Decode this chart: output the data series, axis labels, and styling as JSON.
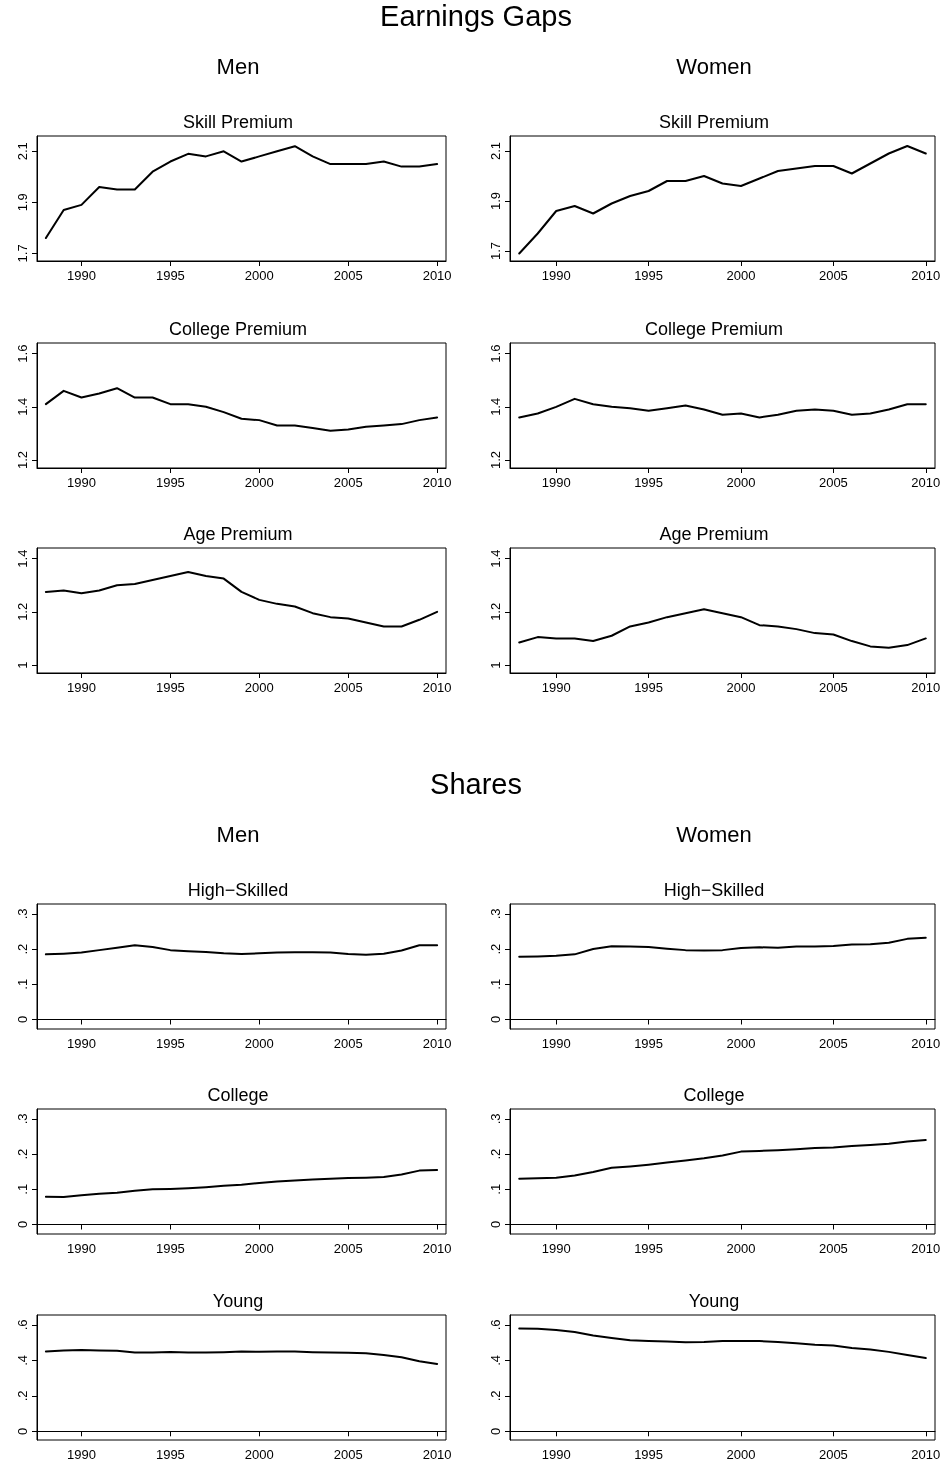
{
  "chart_data": [
    {
      "type": "line",
      "title": "Skill Premium",
      "annotations": [
        "Earnings Gaps",
        "Men"
      ],
      "x": [
        1988,
        1989,
        1990,
        1991,
        1992,
        1993,
        1994,
        1995,
        1996,
        1997,
        1998,
        1999,
        2000,
        2001,
        2002,
        2003,
        2004,
        2005,
        2006,
        2007,
        2008,
        2009,
        2010
      ],
      "values": [
        1.76,
        1.87,
        1.89,
        1.96,
        1.95,
        1.95,
        2.02,
        2.06,
        2.09,
        2.08,
        2.1,
        2.06,
        2.08,
        2.1,
        2.12,
        2.08,
        2.05,
        2.05,
        2.05,
        2.06,
        2.04,
        2.04,
        2.05
      ],
      "color": "#000000",
      "xlim": [
        1987.5,
        2010.5
      ],
      "xticks": [
        1990,
        1995,
        2000,
        2005,
        2010
      ],
      "ylim": [
        1.67,
        2.16
      ],
      "yticks": [
        1.7,
        1.9,
        2.1
      ]
    },
    {
      "type": "line",
      "title": "Skill Premium",
      "annotations": [
        "Women"
      ],
      "x": [
        1988,
        1989,
        1990,
        1991,
        1992,
        1993,
        1994,
        1995,
        1996,
        1997,
        1998,
        1999,
        2000,
        2001,
        2002,
        2003,
        2004,
        2005,
        2006,
        2007,
        2008,
        2009,
        2010
      ],
      "values": [
        1.69,
        1.77,
        1.86,
        1.88,
        1.85,
        1.89,
        1.92,
        1.94,
        1.98,
        1.98,
        2.0,
        1.97,
        1.96,
        1.99,
        2.02,
        2.03,
        2.04,
        2.04,
        2.01,
        2.05,
        2.09,
        2.12,
        2.09
      ],
      "color": "#000000",
      "xlim": [
        1987.5,
        2010.5
      ],
      "xticks": [
        1990,
        1995,
        2000,
        2005,
        2010
      ],
      "ylim": [
        1.66,
        2.16
      ],
      "yticks": [
        1.7,
        1.9,
        2.1
      ]
    },
    {
      "type": "line",
      "title": "College Premium",
      "x": [
        1988,
        1989,
        1990,
        1991,
        1992,
        1993,
        1994,
        1995,
        1996,
        1997,
        1998,
        1999,
        2000,
        2001,
        2002,
        2003,
        2004,
        2005,
        2006,
        2007,
        2008,
        2009,
        2010
      ],
      "values": [
        1.41,
        1.46,
        1.435,
        1.45,
        1.47,
        1.435,
        1.435,
        1.41,
        1.41,
        1.4,
        1.38,
        1.355,
        1.35,
        1.33,
        1.33,
        1.32,
        1.31,
        1.315,
        1.325,
        1.33,
        1.335,
        1.35,
        1.36
      ],
      "color": "#000000",
      "xlim": [
        1987.5,
        2010.5
      ],
      "xticks": [
        1990,
        1995,
        2000,
        2005,
        2010
      ],
      "ylim": [
        1.17,
        1.64
      ],
      "yticks": [
        1.2,
        1.4,
        1.6
      ]
    },
    {
      "type": "line",
      "title": "College Premium",
      "x": [
        1988,
        1989,
        1990,
        1991,
        1992,
        1993,
        1994,
        1995,
        1996,
        1997,
        1998,
        1999,
        2000,
        2001,
        2002,
        2003,
        2004,
        2005,
        2006,
        2007,
        2008,
        2009,
        2010
      ],
      "values": [
        1.36,
        1.375,
        1.4,
        1.43,
        1.41,
        1.4,
        1.395,
        1.385,
        1.395,
        1.405,
        1.39,
        1.37,
        1.375,
        1.36,
        1.37,
        1.385,
        1.39,
        1.385,
        1.37,
        1.375,
        1.39,
        1.41,
        1.41
      ],
      "color": "#000000",
      "xlim": [
        1987.5,
        2010.5
      ],
      "xticks": [
        1990,
        1995,
        2000,
        2005,
        2010
      ],
      "ylim": [
        1.17,
        1.64
      ],
      "yticks": [
        1.2,
        1.4,
        1.6
      ]
    },
    {
      "type": "line",
      "title": "Age Premium",
      "x": [
        1988,
        1989,
        1990,
        1991,
        1992,
        1993,
        1994,
        1995,
        1996,
        1997,
        1998,
        1999,
        2000,
        2001,
        2002,
        2003,
        2004,
        2005,
        2006,
        2007,
        2008,
        2009,
        2010
      ],
      "values": [
        1.275,
        1.28,
        1.27,
        1.28,
        1.3,
        1.305,
        1.32,
        1.335,
        1.35,
        1.335,
        1.325,
        1.275,
        1.245,
        1.23,
        1.22,
        1.195,
        1.18,
        1.175,
        1.16,
        1.145,
        1.145,
        1.17,
        1.2
      ],
      "color": "#000000",
      "xlim": [
        1987.5,
        2010.5
      ],
      "xticks": [
        1990,
        1995,
        2000,
        2005,
        2010
      ],
      "ylim": [
        0.97,
        1.44
      ],
      "yticks": [
        1,
        1.2,
        1.4
      ]
    },
    {
      "type": "line",
      "title": "Age Premium",
      "x": [
        1988,
        1989,
        1990,
        1991,
        1992,
        1993,
        1994,
        1995,
        1996,
        1997,
        1998,
        1999,
        2000,
        2001,
        2002,
        2003,
        2004,
        2005,
        2006,
        2007,
        2008,
        2009,
        2010
      ],
      "values": [
        1.085,
        1.105,
        1.1,
        1.1,
        1.09,
        1.11,
        1.145,
        1.16,
        1.18,
        1.195,
        1.21,
        1.195,
        1.18,
        1.15,
        1.145,
        1.135,
        1.12,
        1.115,
        1.09,
        1.07,
        1.065,
        1.075,
        1.1
      ],
      "color": "#000000",
      "xlim": [
        1987.5,
        2010.5
      ],
      "xticks": [
        1990,
        1995,
        2000,
        2005,
        2010
      ],
      "ylim": [
        0.97,
        1.44
      ],
      "yticks": [
        1,
        1.2,
        1.4
      ]
    },
    {
      "type": "line",
      "title": "High−Skilled",
      "annotations": [
        "Shares",
        "Men"
      ],
      "x": [
        1988,
        1989,
        1990,
        1991,
        1992,
        1993,
        1994,
        1995,
        1996,
        1997,
        1998,
        1999,
        2000,
        2001,
        2002,
        2003,
        2004,
        2005,
        2006,
        2007,
        2008,
        2009,
        2010
      ],
      "values": [
        0.185,
        0.187,
        0.19,
        0.197,
        0.204,
        0.211,
        0.206,
        0.197,
        0.194,
        0.192,
        0.188,
        0.186,
        0.188,
        0.19,
        0.191,
        0.191,
        0.19,
        0.186,
        0.184,
        0.187,
        0.196,
        0.211,
        0.211
      ],
      "color": "#000000",
      "xlim": [
        1987.5,
        2010.5
      ],
      "xticks": [
        1990,
        1995,
        2000,
        2005,
        2010
      ],
      "ylim": [
        -0.027,
        0.328
      ],
      "yticks": [
        0,
        {
          "value": 0.1,
          "label": ".1"
        },
        {
          "value": 0.2,
          "label": ".2"
        },
        {
          "value": 0.3,
          "label": ".3"
        }
      ]
    },
    {
      "type": "line",
      "title": "High−Skilled",
      "annotations": [
        "Women"
      ],
      "x": [
        1988,
        1989,
        1990,
        1991,
        1992,
        1993,
        1994,
        1995,
        1996,
        1997,
        1998,
        1999,
        2000,
        2001,
        2002,
        2003,
        2004,
        2005,
        2006,
        2007,
        2008,
        2009,
        2010
      ],
      "values": [
        0.178,
        0.179,
        0.181,
        0.185,
        0.2,
        0.208,
        0.207,
        0.206,
        0.201,
        0.197,
        0.196,
        0.197,
        0.203,
        0.205,
        0.204,
        0.207,
        0.207,
        0.209,
        0.213,
        0.214,
        0.218,
        0.229,
        0.232
      ],
      "color": "#000000",
      "xlim": [
        1987.5,
        2010.5
      ],
      "xticks": [
        1990,
        1995,
        2000,
        2005,
        2010
      ],
      "ylim": [
        -0.027,
        0.328
      ],
      "yticks": [
        0,
        {
          "value": 0.1,
          "label": ".1"
        },
        {
          "value": 0.2,
          "label": ".2"
        },
        {
          "value": 0.3,
          "label": ".3"
        }
      ]
    },
    {
      "type": "line",
      "title": "College",
      "x": [
        1988,
        1989,
        1990,
        1991,
        1992,
        1993,
        1994,
        1995,
        1996,
        1997,
        1998,
        1999,
        2000,
        2001,
        2002,
        2003,
        2004,
        2005,
        2006,
        2007,
        2008,
        2009,
        2010
      ],
      "values": [
        0.079,
        0.078,
        0.083,
        0.087,
        0.09,
        0.096,
        0.1,
        0.101,
        0.103,
        0.106,
        0.11,
        0.113,
        0.118,
        0.122,
        0.125,
        0.128,
        0.13,
        0.132,
        0.133,
        0.135,
        0.142,
        0.153,
        0.155
      ],
      "color": "#000000",
      "xlim": [
        1987.5,
        2010.5
      ],
      "xticks": [
        1990,
        1995,
        2000,
        2005,
        2010
      ],
      "ylim": [
        -0.027,
        0.328
      ],
      "yticks": [
        0,
        {
          "value": 0.1,
          "label": ".1"
        },
        {
          "value": 0.2,
          "label": ".2"
        },
        {
          "value": 0.3,
          "label": ".3"
        }
      ]
    },
    {
      "type": "line",
      "title": "College",
      "x": [
        1988,
        1989,
        1990,
        1991,
        1992,
        1993,
        1994,
        1995,
        1996,
        1997,
        1998,
        1999,
        2000,
        2001,
        2002,
        2003,
        2004,
        2005,
        2006,
        2007,
        2008,
        2009,
        2010
      ],
      "values": [
        0.13,
        0.131,
        0.133,
        0.139,
        0.149,
        0.161,
        0.165,
        0.17,
        0.176,
        0.182,
        0.188,
        0.196,
        0.207,
        0.209,
        0.211,
        0.214,
        0.217,
        0.219,
        0.223,
        0.226,
        0.229,
        0.236,
        0.24
      ],
      "color": "#000000",
      "xlim": [
        1987.5,
        2010.5
      ],
      "xticks": [
        1990,
        1995,
        2000,
        2005,
        2010
      ],
      "ylim": [
        -0.027,
        0.328
      ],
      "yticks": [
        0,
        {
          "value": 0.1,
          "label": ".1"
        },
        {
          "value": 0.2,
          "label": ".2"
        },
        {
          "value": 0.3,
          "label": ".3"
        }
      ]
    },
    {
      "type": "line",
      "title": "Young",
      "x": [
        1988,
        1989,
        1990,
        1991,
        1992,
        1993,
        1994,
        1995,
        1996,
        1997,
        1998,
        1999,
        2000,
        2001,
        2002,
        2003,
        2004,
        2005,
        2006,
        2007,
        2008,
        2009,
        2010
      ],
      "values": [
        0.45,
        0.456,
        0.458,
        0.456,
        0.455,
        0.445,
        0.445,
        0.447,
        0.445,
        0.444,
        0.446,
        0.45,
        0.449,
        0.45,
        0.45,
        0.446,
        0.444,
        0.443,
        0.44,
        0.431,
        0.418,
        0.395,
        0.38
      ],
      "color": "#000000",
      "xlim": [
        1987.5,
        2010.5
      ],
      "xticks": [
        1990,
        1995,
        2000,
        2005,
        2010
      ],
      "ylim": [
        -0.049,
        0.656
      ],
      "yticks": [
        0,
        {
          "value": 0.2,
          "label": ".2"
        },
        {
          "value": 0.4,
          "label": ".4"
        },
        {
          "value": 0.6,
          "label": ".6"
        }
      ]
    },
    {
      "type": "line",
      "title": "Young",
      "x": [
        1988,
        1989,
        1990,
        1991,
        1992,
        1993,
        1994,
        1995,
        1996,
        1997,
        1998,
        1999,
        2000,
        2001,
        2002,
        2003,
        2004,
        2005,
        2006,
        2007,
        2008,
        2009,
        2010
      ],
      "values": [
        0.58,
        0.578,
        0.572,
        0.56,
        0.54,
        0.526,
        0.514,
        0.51,
        0.507,
        0.503,
        0.504,
        0.51,
        0.51,
        0.509,
        0.504,
        0.496,
        0.488,
        0.484,
        0.47,
        0.461,
        0.448,
        0.43,
        0.413
      ],
      "color": "#000000",
      "xlim": [
        1987.5,
        2010.5
      ],
      "xticks": [
        1990,
        1995,
        2000,
        2005,
        2010
      ],
      "ylim": [
        -0.049,
        0.656
      ],
      "yticks": [
        0,
        {
          "value": 0.2,
          "label": ".2"
        },
        {
          "value": 0.4,
          "label": ".4"
        },
        {
          "value": 0.6,
          "label": ".6"
        }
      ]
    }
  ]
}
